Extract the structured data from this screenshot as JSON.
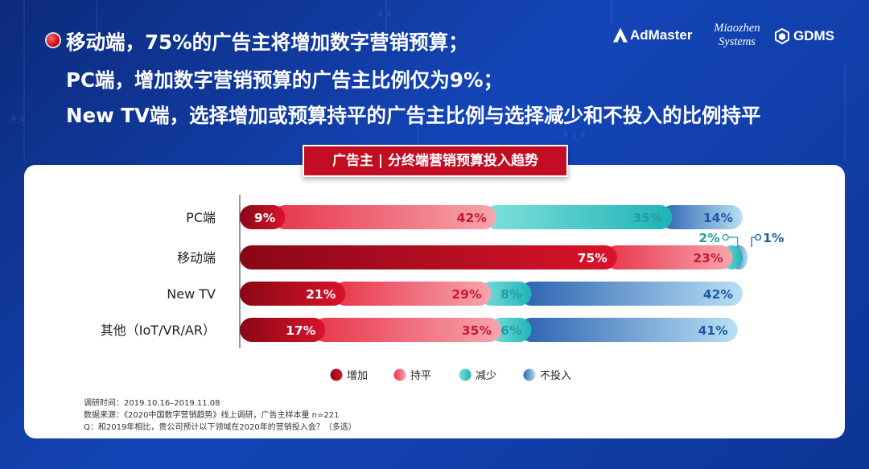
{
  "headline": [
    "移动端，75%的广告主将增加数字营销预算；",
    "PC端，增加数字营销预算的广告主比例仅为9%；",
    "New TV端，选择增加或预算持平的广告主比例与选择减少和不投入的比例持平"
  ],
  "logos": {
    "admaster": "AdMaster",
    "miaozhen": [
      "Miaozhen",
      "Systems"
    ],
    "gdms": "GDMS"
  },
  "chart_data": {
    "type": "bar",
    "orientation": "horizontal-stacked-percent",
    "title": "广告主 | 分终端营销预算投入趋势",
    "categories": [
      "PC端",
      "移动端",
      "New TV",
      "其他（IoT/VR/AR）"
    ],
    "series": [
      {
        "name": "增加",
        "values": [
          9,
          75,
          21,
          17
        ],
        "color": "#b00d1e"
      },
      {
        "name": "持平",
        "values": [
          42,
          23,
          29,
          35
        ],
        "color": "#ee4d5c"
      },
      {
        "name": "减少",
        "values": [
          35,
          2,
          8,
          6
        ],
        "color": "#3cc8c8"
      },
      {
        "name": "不投入",
        "values": [
          14,
          1,
          42,
          41
        ],
        "color": "#2f6fb8"
      }
    ],
    "data_labels": [
      [
        "9%",
        "42%",
        "35%",
        "14%"
      ],
      [
        "75%",
        "23%",
        "2%",
        "1%"
      ],
      [
        "21%",
        "29%",
        "8%",
        "42%"
      ],
      [
        "17%",
        "35%",
        "6%",
        "41%"
      ]
    ],
    "legend_position": "bottom"
  },
  "notes": [
    "调研时间：2019.10.16–2019.11.08",
    "数据来源：《2020中国数字营销趋势》线上调研，广告主样本量 n=221",
    "Q：和2019年相比，贵公司预计以下领域在2020年的营销投入会？（多选）"
  ]
}
